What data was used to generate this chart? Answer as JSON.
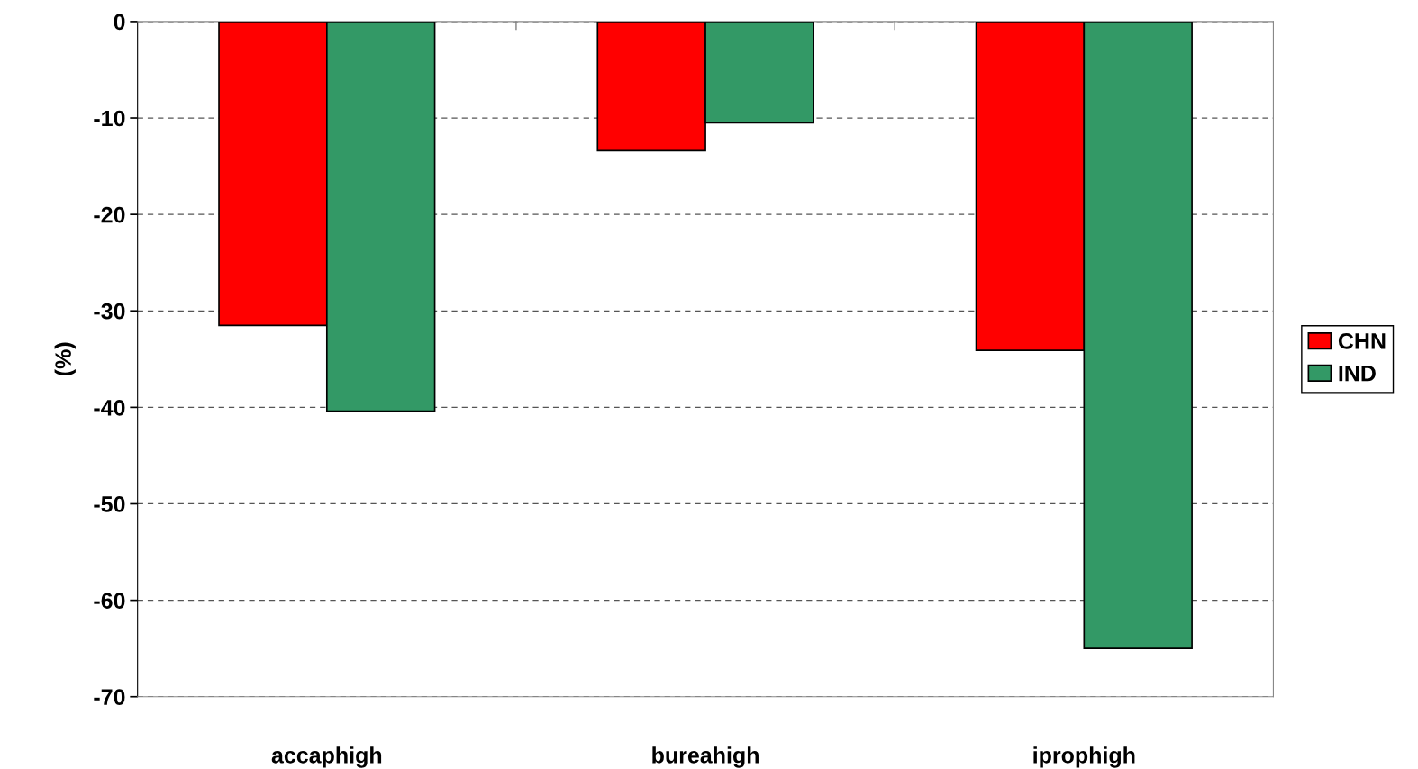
{
  "chart_data": {
    "type": "bar",
    "ylabel": "(%)",
    "categories": [
      "accaphigh",
      "bureahigh",
      "iprophigh"
    ],
    "series": [
      {
        "name": "CHN",
        "color": "#ff0000",
        "values": [
          -31.5,
          -13.4,
          -34.1
        ]
      },
      {
        "name": "IND",
        "color": "#339966",
        "values": [
          -40.4,
          -10.5,
          -65.0
        ]
      }
    ],
    "ylim": [
      -70,
      0
    ],
    "yticks": [
      -70,
      -60,
      -50,
      -40,
      -30,
      -20,
      -10,
      0
    ],
    "grid": "y",
    "legend": "right"
  }
}
